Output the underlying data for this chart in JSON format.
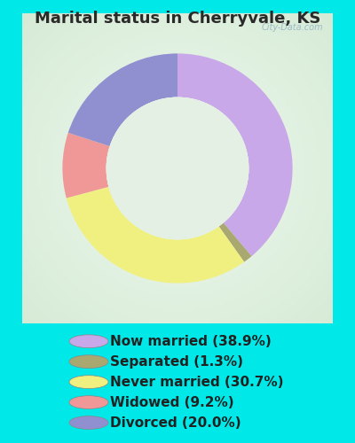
{
  "title": "Marital status in Cherryvale, KS",
  "slices": [
    {
      "label": "Now married (38.9%)",
      "value": 38.9,
      "color": "#C8A8E8"
    },
    {
      "label": "Separated (1.3%)",
      "value": 1.3,
      "color": "#A8A870"
    },
    {
      "label": "Never married (30.7%)",
      "value": 30.7,
      "color": "#F0F080"
    },
    {
      "label": "Widowed (9.2%)",
      "value": 9.2,
      "color": "#F09898"
    },
    {
      "label": "Divorced (20.0%)",
      "value": 20.0,
      "color": "#9090D0"
    }
  ],
  "outer_bg": "#00E8E8",
  "chart_bg_center": "#E8F5E8",
  "chart_bg_edge": "#D0EAD0",
  "title_fontsize": 13,
  "legend_fontsize": 11,
  "watermark": "City-Data.com",
  "title_color": "#2A2A2A"
}
